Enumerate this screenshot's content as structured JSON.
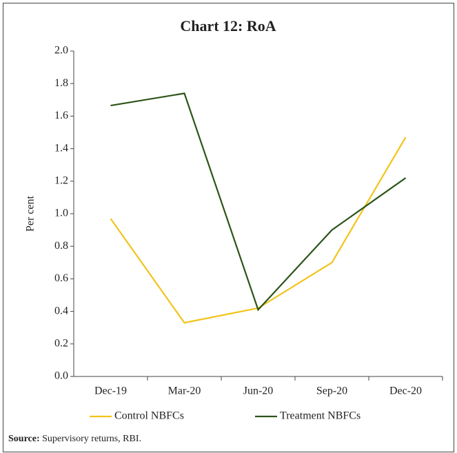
{
  "chart_data": {
    "type": "line",
    "title": "Chart 12: RoA",
    "y_label": "Per cent",
    "categories": [
      "Dec-19",
      "Mar-20",
      "Jun-20",
      "Sep-20",
      "Dec-20"
    ],
    "series": [
      {
        "name": "Control NBFCs",
        "color": "#f2c31b",
        "values": [
          0.97,
          0.33,
          0.42,
          0.7,
          1.47
        ]
      },
      {
        "name": "Treatment NBFCs",
        "color": "#2b5418",
        "values": [
          1.665,
          1.74,
          0.41,
          0.9,
          1.22
        ]
      }
    ],
    "ylim": [
      0,
      2
    ],
    "yticks": [
      {
        "value": 0,
        "label": "0.0"
      },
      0.2,
      0.4,
      0.6,
      0.8,
      {
        "value": 1,
        "label": "1.0"
      },
      1.2,
      1.4,
      1.6,
      1.8,
      {
        "value": 2,
        "label": "2.0"
      }
    ],
    "legend": "bottom",
    "source": {
      "label": "Source:",
      "text": "Supervisory returns, RBI."
    }
  }
}
